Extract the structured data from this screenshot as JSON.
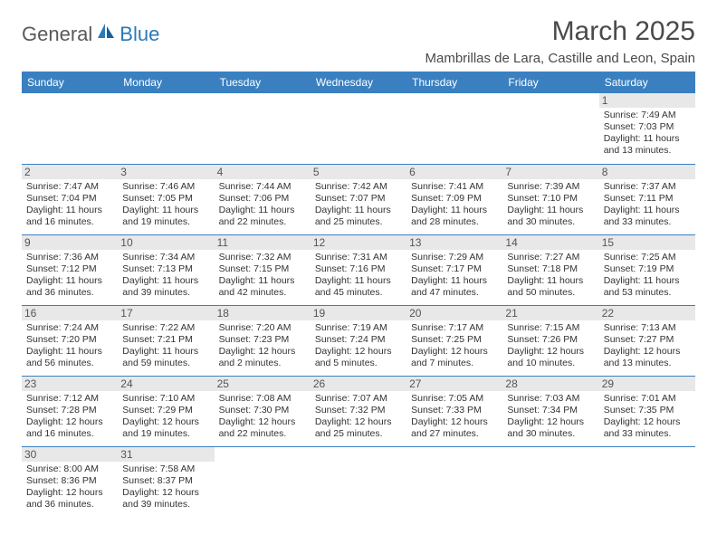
{
  "logo": {
    "word1": "General",
    "word2": "Blue"
  },
  "title": "March 2025",
  "location": "Mambrillas de Lara, Castille and Leon, Spain",
  "columns": [
    "Sunday",
    "Monday",
    "Tuesday",
    "Wednesday",
    "Thursday",
    "Friday",
    "Saturday"
  ],
  "colors": {
    "header_bg": "#3a80c0",
    "header_fg": "#ffffff",
    "border": "#3a80c0",
    "daynum_bg": "#e8e8e8",
    "text": "#333333",
    "logo_gray": "#5a5a5a",
    "logo_blue": "#2a7ab8"
  },
  "weeks": [
    [
      null,
      null,
      null,
      null,
      null,
      null,
      {
        "n": "1",
        "sunrise": "7:49 AM",
        "sunset": "7:03 PM",
        "day_h": "11",
        "day_m": "13"
      }
    ],
    [
      {
        "n": "2",
        "sunrise": "7:47 AM",
        "sunset": "7:04 PM",
        "day_h": "11",
        "day_m": "16"
      },
      {
        "n": "3",
        "sunrise": "7:46 AM",
        "sunset": "7:05 PM",
        "day_h": "11",
        "day_m": "19"
      },
      {
        "n": "4",
        "sunrise": "7:44 AM",
        "sunset": "7:06 PM",
        "day_h": "11",
        "day_m": "22"
      },
      {
        "n": "5",
        "sunrise": "7:42 AM",
        "sunset": "7:07 PM",
        "day_h": "11",
        "day_m": "25"
      },
      {
        "n": "6",
        "sunrise": "7:41 AM",
        "sunset": "7:09 PM",
        "day_h": "11",
        "day_m": "28"
      },
      {
        "n": "7",
        "sunrise": "7:39 AM",
        "sunset": "7:10 PM",
        "day_h": "11",
        "day_m": "30"
      },
      {
        "n": "8",
        "sunrise": "7:37 AM",
        "sunset": "7:11 PM",
        "day_h": "11",
        "day_m": "33"
      }
    ],
    [
      {
        "n": "9",
        "sunrise": "7:36 AM",
        "sunset": "7:12 PM",
        "day_h": "11",
        "day_m": "36"
      },
      {
        "n": "10",
        "sunrise": "7:34 AM",
        "sunset": "7:13 PM",
        "day_h": "11",
        "day_m": "39"
      },
      {
        "n": "11",
        "sunrise": "7:32 AM",
        "sunset": "7:15 PM",
        "day_h": "11",
        "day_m": "42"
      },
      {
        "n": "12",
        "sunrise": "7:31 AM",
        "sunset": "7:16 PM",
        "day_h": "11",
        "day_m": "45"
      },
      {
        "n": "13",
        "sunrise": "7:29 AM",
        "sunset": "7:17 PM",
        "day_h": "11",
        "day_m": "47"
      },
      {
        "n": "14",
        "sunrise": "7:27 AM",
        "sunset": "7:18 PM",
        "day_h": "11",
        "day_m": "50"
      },
      {
        "n": "15",
        "sunrise": "7:25 AM",
        "sunset": "7:19 PM",
        "day_h": "11",
        "day_m": "53"
      }
    ],
    [
      {
        "n": "16",
        "sunrise": "7:24 AM",
        "sunset": "7:20 PM",
        "day_h": "11",
        "day_m": "56"
      },
      {
        "n": "17",
        "sunrise": "7:22 AM",
        "sunset": "7:21 PM",
        "day_h": "11",
        "day_m": "59"
      },
      {
        "n": "18",
        "sunrise": "7:20 AM",
        "sunset": "7:23 PM",
        "day_h": "12",
        "day_m": "2"
      },
      {
        "n": "19",
        "sunrise": "7:19 AM",
        "sunset": "7:24 PM",
        "day_h": "12",
        "day_m": "5"
      },
      {
        "n": "20",
        "sunrise": "7:17 AM",
        "sunset": "7:25 PM",
        "day_h": "12",
        "day_m": "7"
      },
      {
        "n": "21",
        "sunrise": "7:15 AM",
        "sunset": "7:26 PM",
        "day_h": "12",
        "day_m": "10"
      },
      {
        "n": "22",
        "sunrise": "7:13 AM",
        "sunset": "7:27 PM",
        "day_h": "12",
        "day_m": "13"
      }
    ],
    [
      {
        "n": "23",
        "sunrise": "7:12 AM",
        "sunset": "7:28 PM",
        "day_h": "12",
        "day_m": "16"
      },
      {
        "n": "24",
        "sunrise": "7:10 AM",
        "sunset": "7:29 PM",
        "day_h": "12",
        "day_m": "19"
      },
      {
        "n": "25",
        "sunrise": "7:08 AM",
        "sunset": "7:30 PM",
        "day_h": "12",
        "day_m": "22"
      },
      {
        "n": "26",
        "sunrise": "7:07 AM",
        "sunset": "7:32 PM",
        "day_h": "12",
        "day_m": "25"
      },
      {
        "n": "27",
        "sunrise": "7:05 AM",
        "sunset": "7:33 PM",
        "day_h": "12",
        "day_m": "27"
      },
      {
        "n": "28",
        "sunrise": "7:03 AM",
        "sunset": "7:34 PM",
        "day_h": "12",
        "day_m": "30"
      },
      {
        "n": "29",
        "sunrise": "7:01 AM",
        "sunset": "7:35 PM",
        "day_h": "12",
        "day_m": "33"
      }
    ],
    [
      {
        "n": "30",
        "sunrise": "8:00 AM",
        "sunset": "8:36 PM",
        "day_h": "12",
        "day_m": "36"
      },
      {
        "n": "31",
        "sunrise": "7:58 AM",
        "sunset": "8:37 PM",
        "day_h": "12",
        "day_m": "39"
      },
      null,
      null,
      null,
      null,
      null
    ]
  ],
  "labels": {
    "sunrise": "Sunrise:",
    "sunset": "Sunset:",
    "daylight_prefix": "Daylight:",
    "hours_word": "hours",
    "and_word": "and",
    "minutes_word": "minutes."
  }
}
